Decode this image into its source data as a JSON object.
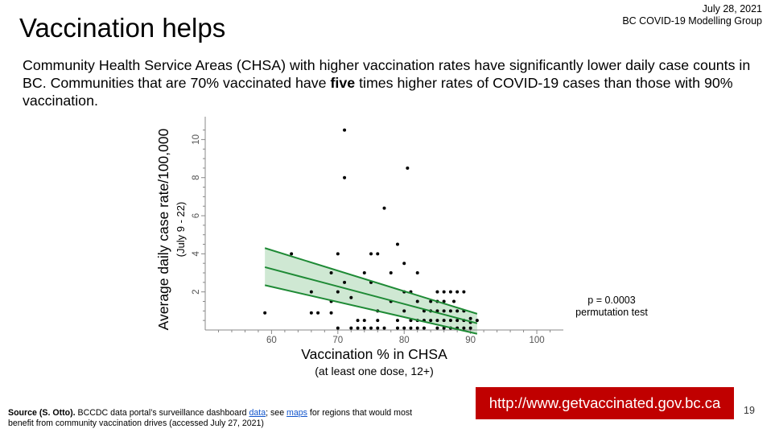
{
  "header": {
    "title": "Vaccination helps",
    "date": "July 28, 2021",
    "group": "BC COVID-19 Modelling Group"
  },
  "intro": {
    "part1": "Community Health Service Areas (CHSA) with higher vaccination rates have significantly lower daily case counts in BC. Communities that are 70% vaccinated have ",
    "bold": "five",
    "part2": " times higher rates of COVID-19 cases than those with 90% vaccination."
  },
  "annotation": {
    "line1": "p = 0.0003",
    "line2": "permutation test"
  },
  "footer": {
    "source_label": "Source (S. Otto).",
    "source_text1": " BCCDC data portal’s surveillance dashboard ",
    "link_data": "data",
    "source_text2": "; see ",
    "link_maps": "maps",
    "source_text3": " for regions that would most benefit from community vaccination drives (accessed July 27, 2021)",
    "url": "http://www.getvaccinated.gov.bc.ca",
    "page_number": "19"
  },
  "colors": {
    "band": "#cfe8d3",
    "line": "#1e8a35",
    "points": "#000000",
    "url_box": "#c00000"
  },
  "chart_data": {
    "type": "scatter",
    "xlabel": "Vaccination % in CHSA",
    "xlabel_sub": "(at least one dose, 12+)",
    "ylabel": "Average daily case rate/100,000",
    "ylabel_sub": "(July 9 - 22)",
    "xlim": [
      50,
      104
    ],
    "ylim": [
      0,
      11
    ],
    "xticks": [
      60,
      70,
      80,
      90,
      100
    ],
    "yticks": [
      2,
      4,
      6,
      8,
      10
    ],
    "regression": {
      "x_start": 59,
      "x_end": 91,
      "fit_start": 3.3,
      "fit_end": 0.35,
      "upper_start": 4.3,
      "upper_end": 0.85,
      "lower_start": 2.35,
      "lower_end": -0.2
    },
    "points": [
      [
        59,
        0.9
      ],
      [
        63,
        4.0
      ],
      [
        66,
        2.0
      ],
      [
        66,
        0.9
      ],
      [
        67,
        0.9
      ],
      [
        69,
        1.5
      ],
      [
        69,
        0.9
      ],
      [
        69,
        3.0
      ],
      [
        70,
        4.0
      ],
      [
        70,
        2.0
      ],
      [
        70,
        0.1
      ],
      [
        71,
        10.5
      ],
      [
        71,
        8.0
      ],
      [
        71,
        2.5
      ],
      [
        72,
        0.1
      ],
      [
        72,
        1.7
      ],
      [
        73,
        0.5
      ],
      [
        73,
        0.1
      ],
      [
        74,
        0.1
      ],
      [
        74,
        3.0
      ],
      [
        74,
        0.5
      ],
      [
        75,
        4.0
      ],
      [
        75,
        2.5
      ],
      [
        75,
        0.1
      ],
      [
        76,
        4.0
      ],
      [
        76,
        1.0
      ],
      [
        76,
        0.5
      ],
      [
        76,
        0.1
      ],
      [
        77,
        6.4
      ],
      [
        77,
        0.1
      ],
      [
        78,
        1.5
      ],
      [
        78,
        3.0
      ],
      [
        79,
        4.5
      ],
      [
        79,
        0.5
      ],
      [
        79,
        0.1
      ],
      [
        80,
        3.5
      ],
      [
        80,
        2.0
      ],
      [
        80,
        1.0
      ],
      [
        80,
        0.1
      ],
      [
        80.5,
        8.5
      ],
      [
        81,
        2.0
      ],
      [
        81,
        0.5
      ],
      [
        81,
        0.1
      ],
      [
        82,
        3.0
      ],
      [
        82,
        1.5
      ],
      [
        82,
        0.5
      ],
      [
        82,
        0.1
      ],
      [
        83,
        1.0
      ],
      [
        83,
        0.5
      ],
      [
        83,
        0.1
      ],
      [
        84,
        1.5
      ],
      [
        84,
        1.0
      ],
      [
        84,
        0.5
      ],
      [
        85,
        2.0
      ],
      [
        85,
        1.5
      ],
      [
        85,
        1.0
      ],
      [
        85,
        0.5
      ],
      [
        85,
        0.1
      ],
      [
        86,
        2.0
      ],
      [
        86,
        1.5
      ],
      [
        86,
        1.0
      ],
      [
        86,
        0.5
      ],
      [
        86,
        0.1
      ],
      [
        87,
        2.0
      ],
      [
        87,
        1.0
      ],
      [
        87,
        0.5
      ],
      [
        87,
        0.1
      ],
      [
        87.5,
        1.5
      ],
      [
        88,
        2.0
      ],
      [
        88,
        1.0
      ],
      [
        88,
        0.5
      ],
      [
        88,
        0.1
      ],
      [
        89,
        2.0
      ],
      [
        89,
        1.0
      ],
      [
        89,
        0.5
      ],
      [
        89,
        0.1
      ],
      [
        90,
        0.6
      ],
      [
        90,
        0.4
      ],
      [
        90,
        0.1
      ],
      [
        91,
        0.5
      ]
    ]
  }
}
